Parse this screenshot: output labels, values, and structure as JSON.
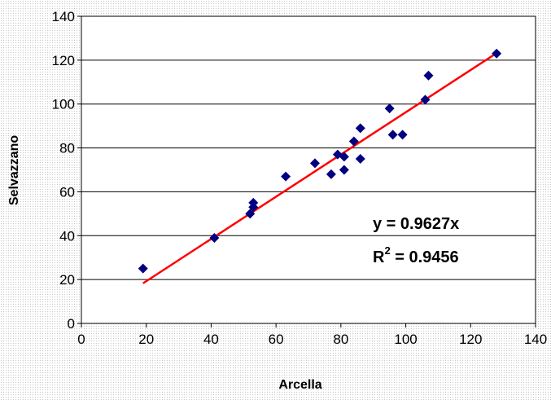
{
  "chart_data": {
    "type": "scatter",
    "title": "",
    "xlabel": "Arcella",
    "ylabel": "Selvazzano",
    "xlim": [
      0,
      140
    ],
    "ylim": [
      0,
      140
    ],
    "x_ticks": [
      0,
      20,
      40,
      60,
      80,
      100,
      120,
      140
    ],
    "y_ticks": [
      0,
      20,
      40,
      60,
      80,
      100,
      120,
      140
    ],
    "x_tick_labels": [
      "0",
      "20",
      "40",
      "60",
      "80",
      "100",
      "120",
      "140"
    ],
    "y_tick_labels": [
      "0",
      "20",
      "40",
      "60",
      "80",
      "100",
      "120",
      "140"
    ],
    "grid": "horizontal",
    "legend": "none",
    "series": [
      {
        "marker": "diamond",
        "color": "#000080",
        "points": [
          [
            19,
            25
          ],
          [
            41,
            39
          ],
          [
            52,
            50
          ],
          [
            53,
            53
          ],
          [
            53,
            55
          ],
          [
            63,
            67
          ],
          [
            72,
            73
          ],
          [
            77,
            68
          ],
          [
            79,
            77
          ],
          [
            81,
            70
          ],
          [
            81,
            76
          ],
          [
            84,
            83
          ],
          [
            86,
            89
          ],
          [
            86,
            75
          ],
          [
            95,
            98
          ],
          [
            96,
            86
          ],
          [
            99,
            86
          ],
          [
            106,
            102
          ],
          [
            107,
            113
          ],
          [
            128,
            123
          ]
        ]
      }
    ],
    "trendline": {
      "color": "#ff0000",
      "slope": 0.9627,
      "x_start": 19,
      "x_end": 128
    },
    "annotations": {
      "equation": "y = 0.9627x",
      "r2_prefix": "R",
      "r2_superscript": "2",
      "r2_value": " = 0.9456"
    }
  }
}
